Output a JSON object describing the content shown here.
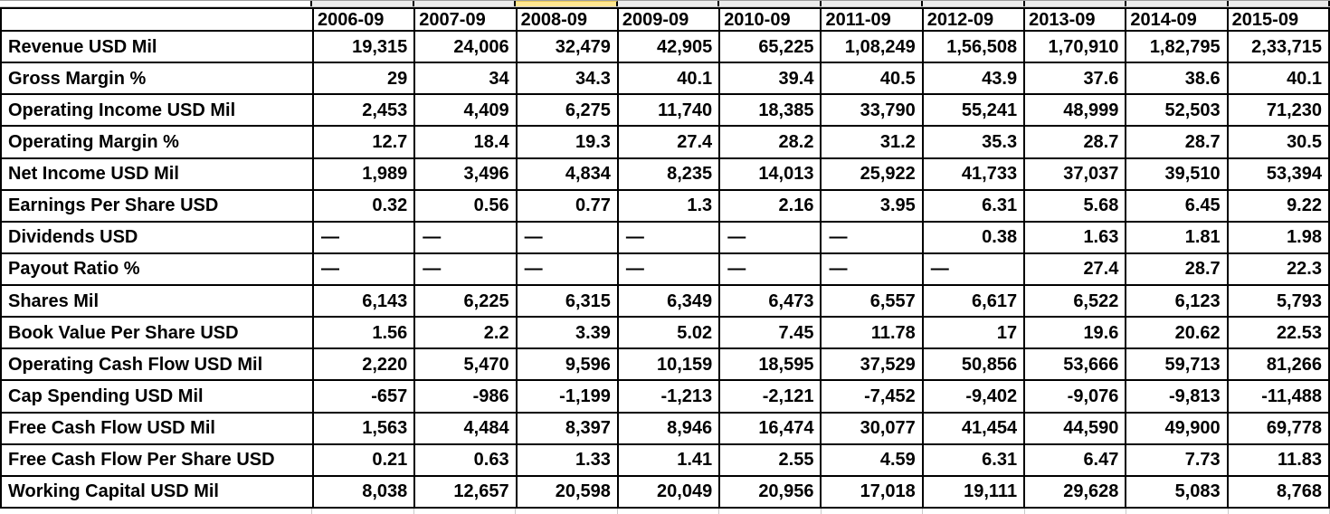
{
  "sheet": {
    "app": "spreadsheet",
    "highlighted_column": "2008-09",
    "colors": {
      "highlight_yellow": "#ffe690",
      "strip_gray": "#ececec",
      "cell_border": "#000000",
      "gridline_gray": "#c9c9c9",
      "text": "#000000",
      "background": "#ffffff"
    }
  },
  "table": {
    "corner_label": "",
    "columns": [
      "2006-09",
      "2007-09",
      "2008-09",
      "2009-09",
      "2010-09",
      "2011-09",
      "2012-09",
      "2013-09",
      "2014-09",
      "2015-09"
    ],
    "rows": [
      {
        "label": "Revenue USD Mil",
        "values": [
          "19,315",
          "24,006",
          "32,479",
          "42,905",
          "65,225",
          "1,08,249",
          "1,56,508",
          "1,70,910",
          "1,82,795",
          "2,33,715"
        ]
      },
      {
        "label": "Gross Margin %",
        "values": [
          "29",
          "34",
          "34.3",
          "40.1",
          "39.4",
          "40.5",
          "43.9",
          "37.6",
          "38.6",
          "40.1"
        ]
      },
      {
        "label": "Operating Income USD Mil",
        "values": [
          "2,453",
          "4,409",
          "6,275",
          "11,740",
          "18,385",
          "33,790",
          "55,241",
          "48,999",
          "52,503",
          "71,230"
        ]
      },
      {
        "label": "Operating Margin %",
        "values": [
          "12.7",
          "18.4",
          "19.3",
          "27.4",
          "28.2",
          "31.2",
          "35.3",
          "28.7",
          "28.7",
          "30.5"
        ]
      },
      {
        "label": "Net Income USD Mil",
        "values": [
          "1,989",
          "3,496",
          "4,834",
          "8,235",
          "14,013",
          "25,922",
          "41,733",
          "37,037",
          "39,510",
          "53,394"
        ]
      },
      {
        "label": "Earnings Per Share USD",
        "values": [
          "0.32",
          "0.56",
          "0.77",
          "1.3",
          "2.16",
          "3.95",
          "6.31",
          "5.68",
          "6.45",
          "9.22"
        ]
      },
      {
        "label": "Dividends USD",
        "values": [
          "—",
          "—",
          "—",
          "—",
          "—",
          "—",
          "0.38",
          "1.63",
          "1.81",
          "1.98"
        ]
      },
      {
        "label": "Payout Ratio %",
        "values": [
          "—",
          "—",
          "—",
          "—",
          "—",
          "—",
          "—",
          "27.4",
          "28.7",
          "22.3"
        ]
      },
      {
        "label": "Shares Mil",
        "values": [
          "6,143",
          "6,225",
          "6,315",
          "6,349",
          "6,473",
          "6,557",
          "6,617",
          "6,522",
          "6,123",
          "5,793"
        ]
      },
      {
        "label": "Book Value Per Share USD",
        "values": [
          "1.56",
          "2.2",
          "3.39",
          "5.02",
          "7.45",
          "11.78",
          "17",
          "19.6",
          "20.62",
          "22.53"
        ]
      },
      {
        "label": "Operating Cash Flow USD Mil",
        "values": [
          "2,220",
          "5,470",
          "9,596",
          "10,159",
          "18,595",
          "37,529",
          "50,856",
          "53,666",
          "59,713",
          "81,266"
        ]
      },
      {
        "label": "Cap Spending USD Mil",
        "values": [
          "-657",
          "-986",
          "-1,199",
          "-1,213",
          "-2,121",
          "-7,452",
          "-9,402",
          "-9,076",
          "-9,813",
          "-11,488"
        ]
      },
      {
        "label": "Free Cash Flow USD Mil",
        "values": [
          "1,563",
          "4,484",
          "8,397",
          "8,946",
          "16,474",
          "30,077",
          "41,454",
          "44,590",
          "49,900",
          "69,778"
        ]
      },
      {
        "label": "Free Cash Flow Per Share USD",
        "values": [
          "0.21",
          "0.63",
          "1.33",
          "1.41",
          "2.55",
          "4.59",
          "6.31",
          "6.47",
          "7.73",
          "11.83"
        ]
      },
      {
        "label": "Working Capital USD Mil",
        "values": [
          "8,038",
          "12,657",
          "20,598",
          "20,049",
          "20,956",
          "17,018",
          "19,111",
          "29,628",
          "5,083",
          "8,768"
        ]
      }
    ]
  }
}
